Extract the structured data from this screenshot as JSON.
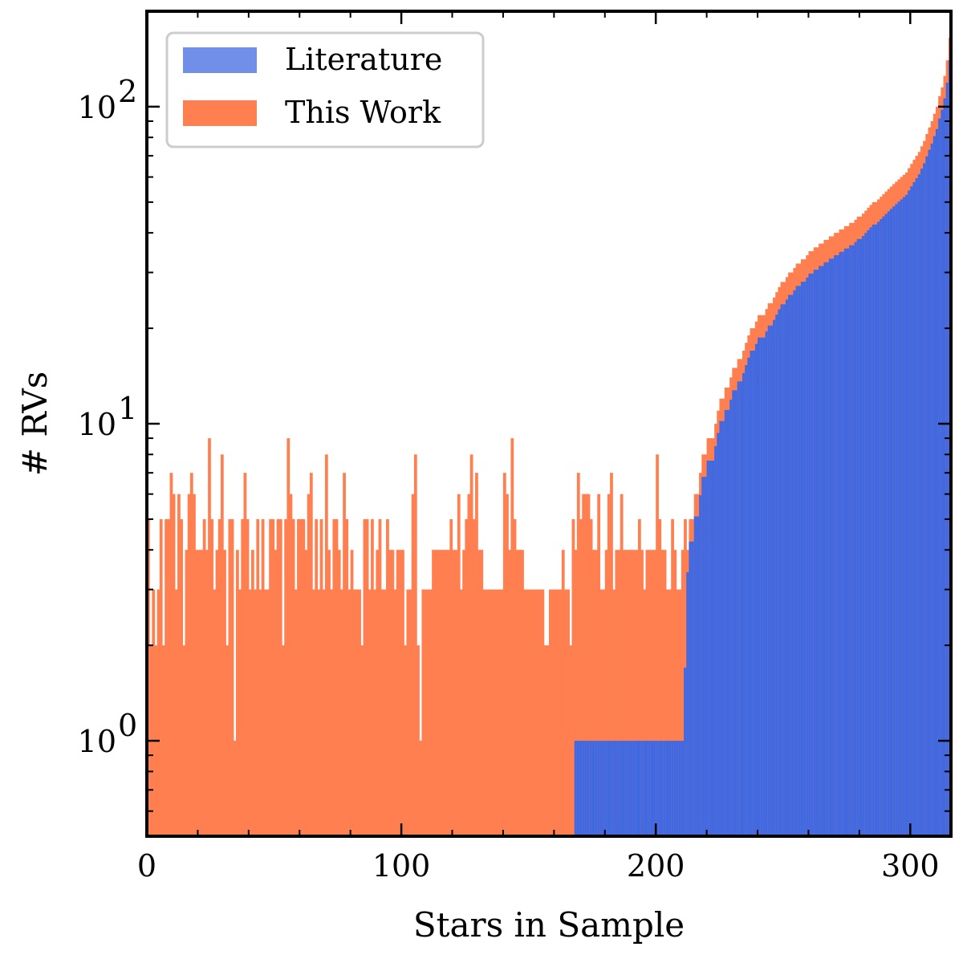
{
  "chart_data": {
    "type": "bar",
    "xlabel": "Stars in Sample",
    "ylabel": "# RVs",
    "xlim": [
      0,
      316
    ],
    "ylim": [
      0.5,
      200
    ],
    "y_scale": "log",
    "x_ticks": [
      0,
      100,
      200,
      300
    ],
    "x_tick_labels": [
      "0",
      "100",
      "200",
      "300"
    ],
    "y_ticks": [
      1,
      10,
      100
    ],
    "y_tick_labels": [
      {
        "base": "10",
        "exp": "0"
      },
      {
        "base": "10",
        "exp": "1"
      },
      {
        "base": "10",
        "exp": "2"
      }
    ],
    "legend_position": "top-left",
    "series": [
      {
        "name": "Literature",
        "color": "#4169E1"
      },
      {
        "name": "This Work",
        "color": "#FF7F50"
      }
    ],
    "this_work_counts_stars_0_to_211": [
      5,
      2,
      3,
      2,
      3,
      5,
      2,
      5,
      5,
      7,
      6,
      3,
      6,
      5,
      2,
      4,
      6,
      7,
      6,
      4,
      4,
      4,
      5,
      4,
      9,
      5,
      3,
      4,
      5,
      8,
      4,
      2,
      5,
      5,
      1,
      4,
      3,
      5,
      7,
      5,
      3,
      4,
      3,
      5,
      3,
      5,
      3,
      3,
      5,
      5,
      4,
      5,
      5,
      2,
      5,
      9,
      6,
      5,
      3,
      5,
      5,
      5,
      4,
      6,
      7,
      3,
      5,
      3,
      5,
      3,
      8,
      4,
      3,
      5,
      5,
      4,
      3,
      7,
      5,
      3,
      4,
      3,
      3,
      3,
      2,
      5,
      5,
      3,
      5,
      3,
      4,
      5,
      3,
      3,
      5,
      4,
      4,
      3,
      4,
      4,
      4,
      2,
      3,
      3,
      6,
      8,
      2,
      1,
      3,
      3,
      3,
      3,
      4,
      4,
      4,
      4,
      4,
      4,
      4,
      5,
      4,
      4,
      6,
      3,
      4,
      5,
      6,
      8,
      5,
      7,
      4,
      4,
      3,
      3,
      3,
      3,
      3,
      3,
      3,
      3,
      7,
      6,
      4,
      9,
      5,
      4,
      4,
      4,
      3,
      3,
      3,
      3,
      3,
      3,
      3,
      3,
      2,
      2,
      3,
      3,
      3,
      3,
      3,
      4,
      3,
      3,
      2,
      5,
      3,
      6,
      4,
      5,
      5,
      5,
      4,
      3,
      3,
      5,
      2,
      2,
      3,
      5,
      6,
      2,
      3,
      3,
      5,
      3,
      3,
      3,
      3,
      3,
      3,
      4,
      3,
      2,
      3,
      3,
      3,
      3,
      7,
      4,
      3,
      3,
      2,
      2,
      4,
      3,
      2,
      2,
      3,
      4
    ],
    "literature_counts_stars_0_to_168": 0,
    "literature_counts_stars_168_to_211": 1,
    "stacked_totals_stars_211_to_316": [
      2,
      4,
      5,
      5,
      6,
      6,
      7,
      8,
      8,
      9,
      9,
      9,
      10,
      11,
      12,
      12,
      13,
      13,
      14,
      15,
      15,
      16,
      16,
      17,
      18,
      19,
      20,
      20,
      21,
      22,
      22,
      22,
      23,
      24,
      24,
      25,
      26,
      27,
      28,
      28,
      29,
      30,
      30,
      31,
      32,
      32,
      33,
      33,
      34,
      35,
      35,
      36,
      36,
      37,
      37,
      38,
      38,
      39,
      39,
      40,
      40,
      41,
      41,
      42,
      42,
      43,
      43,
      44,
      45,
      45,
      46,
      47,
      48,
      49,
      50,
      50,
      51,
      52,
      53,
      54,
      55,
      56,
      57,
      58,
      59,
      60,
      61,
      62,
      64,
      66,
      68,
      70,
      72,
      75,
      78,
      82,
      86,
      90,
      95,
      100,
      108,
      115,
      125,
      140,
      165
    ]
  }
}
